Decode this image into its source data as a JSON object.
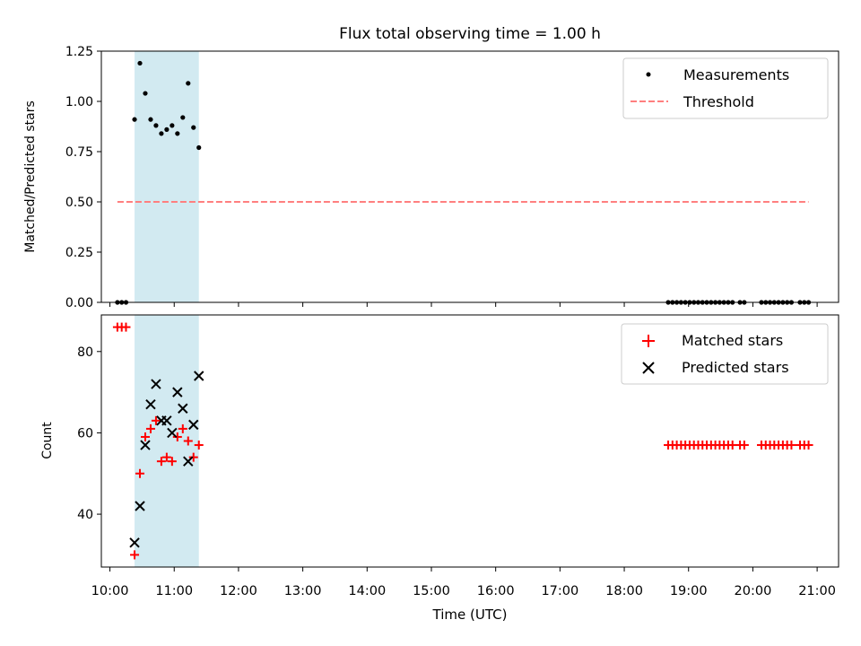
{
  "chart_data": {
    "type": "scatter",
    "title": "Flux total observing time = 1.00 h",
    "xlabel": "Time (UTC)",
    "x_ticks": [
      "10:00",
      "11:00",
      "12:00",
      "13:00",
      "14:00",
      "15:00",
      "16:00",
      "17:00",
      "18:00",
      "19:00",
      "20:00",
      "21:00"
    ],
    "xlim": [
      "09:52",
      "21:20"
    ],
    "shaded_interval": [
      "10:23",
      "11:23"
    ],
    "colors": {
      "shade": "#add8e6",
      "threshold": "#ff7f7f",
      "matched": "#ff0000",
      "predicted": "#000000",
      "measurements": "#000000"
    },
    "panels": [
      {
        "ylabel": "Matched/Predicted stars",
        "ylim": [
          0,
          1.25
        ],
        "y_ticks": [
          "0.00",
          "0.25",
          "0.50",
          "0.75",
          "1.00",
          "1.25"
        ],
        "legend_position": "top-right",
        "series": [
          {
            "name": "Measurements",
            "marker": "dot",
            "points": [
              [
                "10:07",
                0
              ],
              [
                "10:11",
                0
              ],
              [
                "10:15",
                0
              ],
              [
                "10:23",
                0.91
              ],
              [
                "10:28",
                1.19
              ],
              [
                "10:33",
                1.04
              ],
              [
                "10:38",
                0.91
              ],
              [
                "10:43",
                0.88
              ],
              [
                "10:48",
                0.84
              ],
              [
                "10:53",
                0.86
              ],
              [
                "10:58",
                0.88
              ],
              [
                "11:03",
                0.84
              ],
              [
                "11:08",
                0.92
              ],
              [
                "11:13",
                1.09
              ],
              [
                "11:18",
                0.87
              ],
              [
                "11:23",
                0.77
              ],
              [
                "18:41",
                0
              ],
              [
                "18:45",
                0
              ],
              [
                "18:49",
                0
              ],
              [
                "18:53",
                0
              ],
              [
                "18:57",
                0
              ],
              [
                "19:01",
                0
              ],
              [
                "19:05",
                0
              ],
              [
                "19:09",
                0
              ],
              [
                "19:13",
                0
              ],
              [
                "19:17",
                0
              ],
              [
                "19:21",
                0
              ],
              [
                "19:25",
                0
              ],
              [
                "19:29",
                0
              ],
              [
                "19:33",
                0
              ],
              [
                "19:37",
                0
              ],
              [
                "19:41",
                0
              ],
              [
                "19:48",
                0
              ],
              [
                "19:52",
                0
              ],
              [
                "20:08",
                0
              ],
              [
                "20:12",
                0
              ],
              [
                "20:16",
                0
              ],
              [
                "20:20",
                0
              ],
              [
                "20:24",
                0
              ],
              [
                "20:28",
                0
              ],
              [
                "20:32",
                0
              ],
              [
                "20:36",
                0
              ],
              [
                "20:44",
                0
              ],
              [
                "20:48",
                0
              ],
              [
                "20:52",
                0
              ]
            ]
          },
          {
            "name": "Threshold",
            "marker": "dashed-line",
            "points": [
              [
                "10:07",
                0.5
              ],
              [
                "20:52",
                0.5
              ]
            ]
          }
        ]
      },
      {
        "ylabel": "Count",
        "ylim": [
          27,
          89
        ],
        "y_ticks": [
          "40",
          "60",
          "80"
        ],
        "legend_position": "top-right",
        "series": [
          {
            "name": "Matched stars",
            "marker": "plus",
            "points": [
              [
                "10:07",
                86
              ],
              [
                "10:11",
                86
              ],
              [
                "10:15",
                86
              ],
              [
                "10:23",
                30
              ],
              [
                "10:28",
                50
              ],
              [
                "10:33",
                59
              ],
              [
                "10:38",
                61
              ],
              [
                "10:43",
                63
              ],
              [
                "10:48",
                53
              ],
              [
                "10:53",
                54
              ],
              [
                "10:58",
                53
              ],
              [
                "11:03",
                59
              ],
              [
                "11:08",
                61
              ],
              [
                "11:13",
                58
              ],
              [
                "11:18",
                54
              ],
              [
                "11:23",
                57
              ],
              [
                "18:41",
                57
              ],
              [
                "18:45",
                57
              ],
              [
                "18:49",
                57
              ],
              [
                "18:53",
                57
              ],
              [
                "18:57",
                57
              ],
              [
                "19:01",
                57
              ],
              [
                "19:05",
                57
              ],
              [
                "19:09",
                57
              ],
              [
                "19:13",
                57
              ],
              [
                "19:17",
                57
              ],
              [
                "19:21",
                57
              ],
              [
                "19:25",
                57
              ],
              [
                "19:29",
                57
              ],
              [
                "19:33",
                57
              ],
              [
                "19:37",
                57
              ],
              [
                "19:41",
                57
              ],
              [
                "19:48",
                57
              ],
              [
                "19:52",
                57
              ],
              [
                "20:08",
                57
              ],
              [
                "20:12",
                57
              ],
              [
                "20:16",
                57
              ],
              [
                "20:20",
                57
              ],
              [
                "20:24",
                57
              ],
              [
                "20:28",
                57
              ],
              [
                "20:32",
                57
              ],
              [
                "20:36",
                57
              ],
              [
                "20:44",
                57
              ],
              [
                "20:48",
                57
              ],
              [
                "20:52",
                57
              ]
            ]
          },
          {
            "name": "Predicted stars",
            "marker": "x",
            "points": [
              [
                "10:23",
                33
              ],
              [
                "10:28",
                42
              ],
              [
                "10:33",
                57
              ],
              [
                "10:38",
                67
              ],
              [
                "10:43",
                72
              ],
              [
                "10:48",
                63
              ],
              [
                "10:53",
                63
              ],
              [
                "10:58",
                60
              ],
              [
                "11:03",
                70
              ],
              [
                "11:08",
                66
              ],
              [
                "11:13",
                53
              ],
              [
                "11:18",
                62
              ],
              [
                "11:23",
                74
              ]
            ]
          }
        ]
      }
    ]
  }
}
